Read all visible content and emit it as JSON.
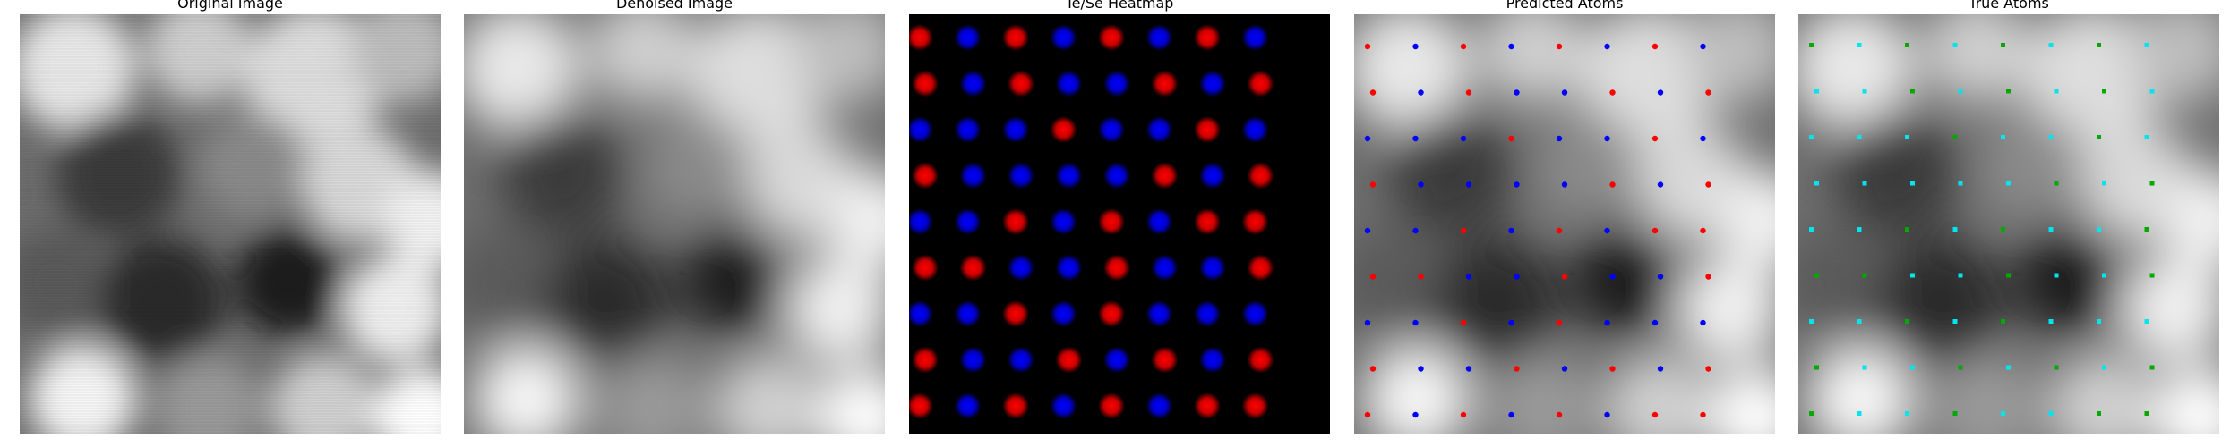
{
  "panels": [
    {
      "title": "Original Image"
    },
    {
      "title": "Denoised Image"
    },
    {
      "title": "Te/Se Heatmap"
    },
    {
      "title": "Predicted Atoms"
    },
    {
      "title": "True Atoms"
    }
  ],
  "colors": {
    "te": "#ff0000",
    "se": "#0000ff",
    "true_te": "#00aa00",
    "true_se": "#00e5ee",
    "heatmap_bg": "#000000"
  },
  "heatmap": {
    "grid": [
      "RBRBRBRB",
      "RBRBBRBR",
      "BBBRBBRB",
      "RBBBBRBR",
      "BBRBRBRR",
      "RRBBRBBR",
      "BBRBRBBB",
      "RBBRBRBR",
      "RBRBRBRR"
    ]
  },
  "predicted_atoms": {
    "grid": [
      "RBRBRBRB",
      "RBRBBRBR",
      "BBBRBBRB",
      "RBBBBRBR",
      "BBRBRBRR",
      "RRBBRBBR",
      "BBRBRBBB",
      "RBBRBRBR",
      "RBRBRBRR"
    ]
  },
  "true_atoms": {
    "grid": [
      "GCGCGCGC",
      "CCGCGCGC",
      "CCCGCCGC",
      "CCCCCGCG",
      "CCGCGCCG",
      "GGCCGCCG",
      "CCGCGCCC",
      "GCCGCGCG",
      "GCCGCCGG"
    ]
  }
}
